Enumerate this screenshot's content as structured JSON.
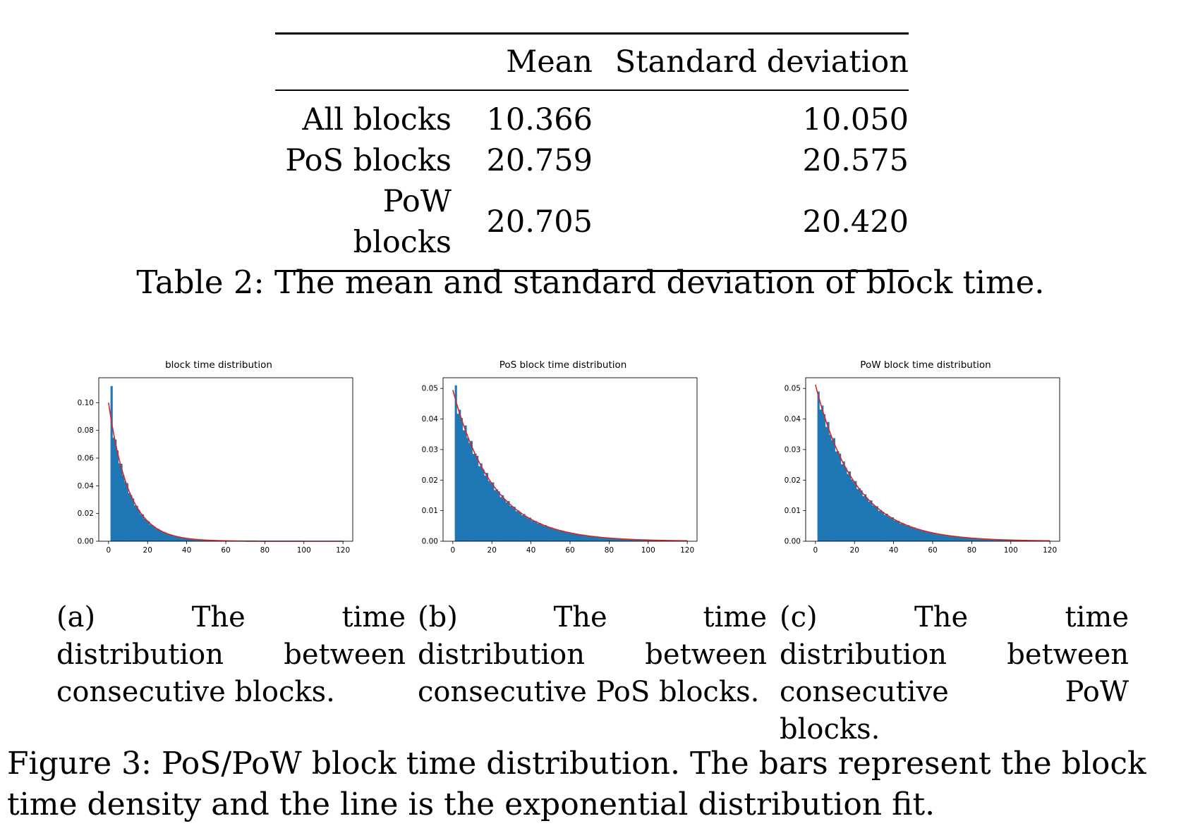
{
  "table": {
    "headers": [
      "",
      "Mean",
      "Standard deviation"
    ],
    "rows": [
      {
        "label": "All blocks",
        "mean": "10.366",
        "std": "10.050"
      },
      {
        "label": "PoS blocks",
        "mean": "20.759",
        "std": "20.575"
      },
      {
        "label": "PoW blocks",
        "mean": "20.705",
        "std": "20.420"
      }
    ],
    "caption": "Table 2: The mean and standard deviation of block time."
  },
  "chart_data": [
    {
      "type": "bar",
      "title": "block time distribution",
      "xlabel": "",
      "ylabel": "",
      "xlim": [
        -5,
        125
      ],
      "ylim": [
        0,
        0.118
      ],
      "xticks": [
        0,
        20,
        40,
        60,
        80,
        100,
        120
      ],
      "yticks": [
        0.0,
        0.02,
        0.04,
        0.06,
        0.08,
        0.1
      ],
      "ytick_labels": [
        "0.00",
        "0.02",
        "0.04",
        "0.06",
        "0.08",
        "0.10"
      ],
      "bin_start": 1,
      "bin_width": 1,
      "spike_x": 1,
      "spike_value": 0.112,
      "fit": {
        "label": "exponential distribution fit",
        "x0": 0,
        "y0": 0.1,
        "rate": 0.0965,
        "x_end": 120
      },
      "grid": false,
      "legend": "none",
      "bar_color": "#1f77b4",
      "fit_color": "#d62728"
    },
    {
      "type": "bar",
      "title": "PoS block time distribution",
      "xlabel": "",
      "ylabel": "",
      "xlim": [
        -5,
        125
      ],
      "ylim": [
        0,
        0.0535
      ],
      "xticks": [
        0,
        20,
        40,
        60,
        80,
        100,
        120
      ],
      "yticks": [
        0.0,
        0.01,
        0.02,
        0.03,
        0.04,
        0.05
      ],
      "ytick_labels": [
        "0.00",
        "0.01",
        "0.02",
        "0.03",
        "0.04",
        "0.05"
      ],
      "bin_start": 1,
      "bin_width": 1,
      "spike_x": 1,
      "spike_value": 0.051,
      "fit": {
        "label": "exponential distribution fit",
        "x0": 0,
        "y0": 0.0495,
        "rate": 0.0482,
        "x_end": 120
      },
      "grid": false,
      "legend": "none",
      "bar_color": "#1f77b4",
      "fit_color": "#d62728"
    },
    {
      "type": "bar",
      "title": "PoW block time distribution",
      "xlabel": "",
      "ylabel": "",
      "xlim": [
        -5,
        125
      ],
      "ylim": [
        0,
        0.0535
      ],
      "xticks": [
        0,
        20,
        40,
        60,
        80,
        100,
        120
      ],
      "yticks": [
        0.0,
        0.01,
        0.02,
        0.03,
        0.04,
        0.05
      ],
      "ytick_labels": [
        "0.00",
        "0.01",
        "0.02",
        "0.03",
        "0.04",
        "0.05"
      ],
      "bin_start": 1,
      "bin_width": 1,
      "spike_x": 1,
      "spike_value": 0.049,
      "fit": {
        "label": "exponential distribution fit",
        "x0": 0,
        "y0": 0.0512,
        "rate": 0.0488,
        "x_end": 120
      },
      "grid": false,
      "legend": "none",
      "bar_color": "#1f77b4",
      "fit_color": "#d62728"
    }
  ],
  "subcaptions": [
    "(a) The time distribution between consecutive blocks.",
    "(b) The time distribution between consecutive PoS blocks.",
    "(c) The time distribution between consecutive PoW blocks."
  ],
  "figure_caption": "Figure 3: PoS/PoW block time distribution. The bars represent the block time density and the line is the exponential distribution fit."
}
